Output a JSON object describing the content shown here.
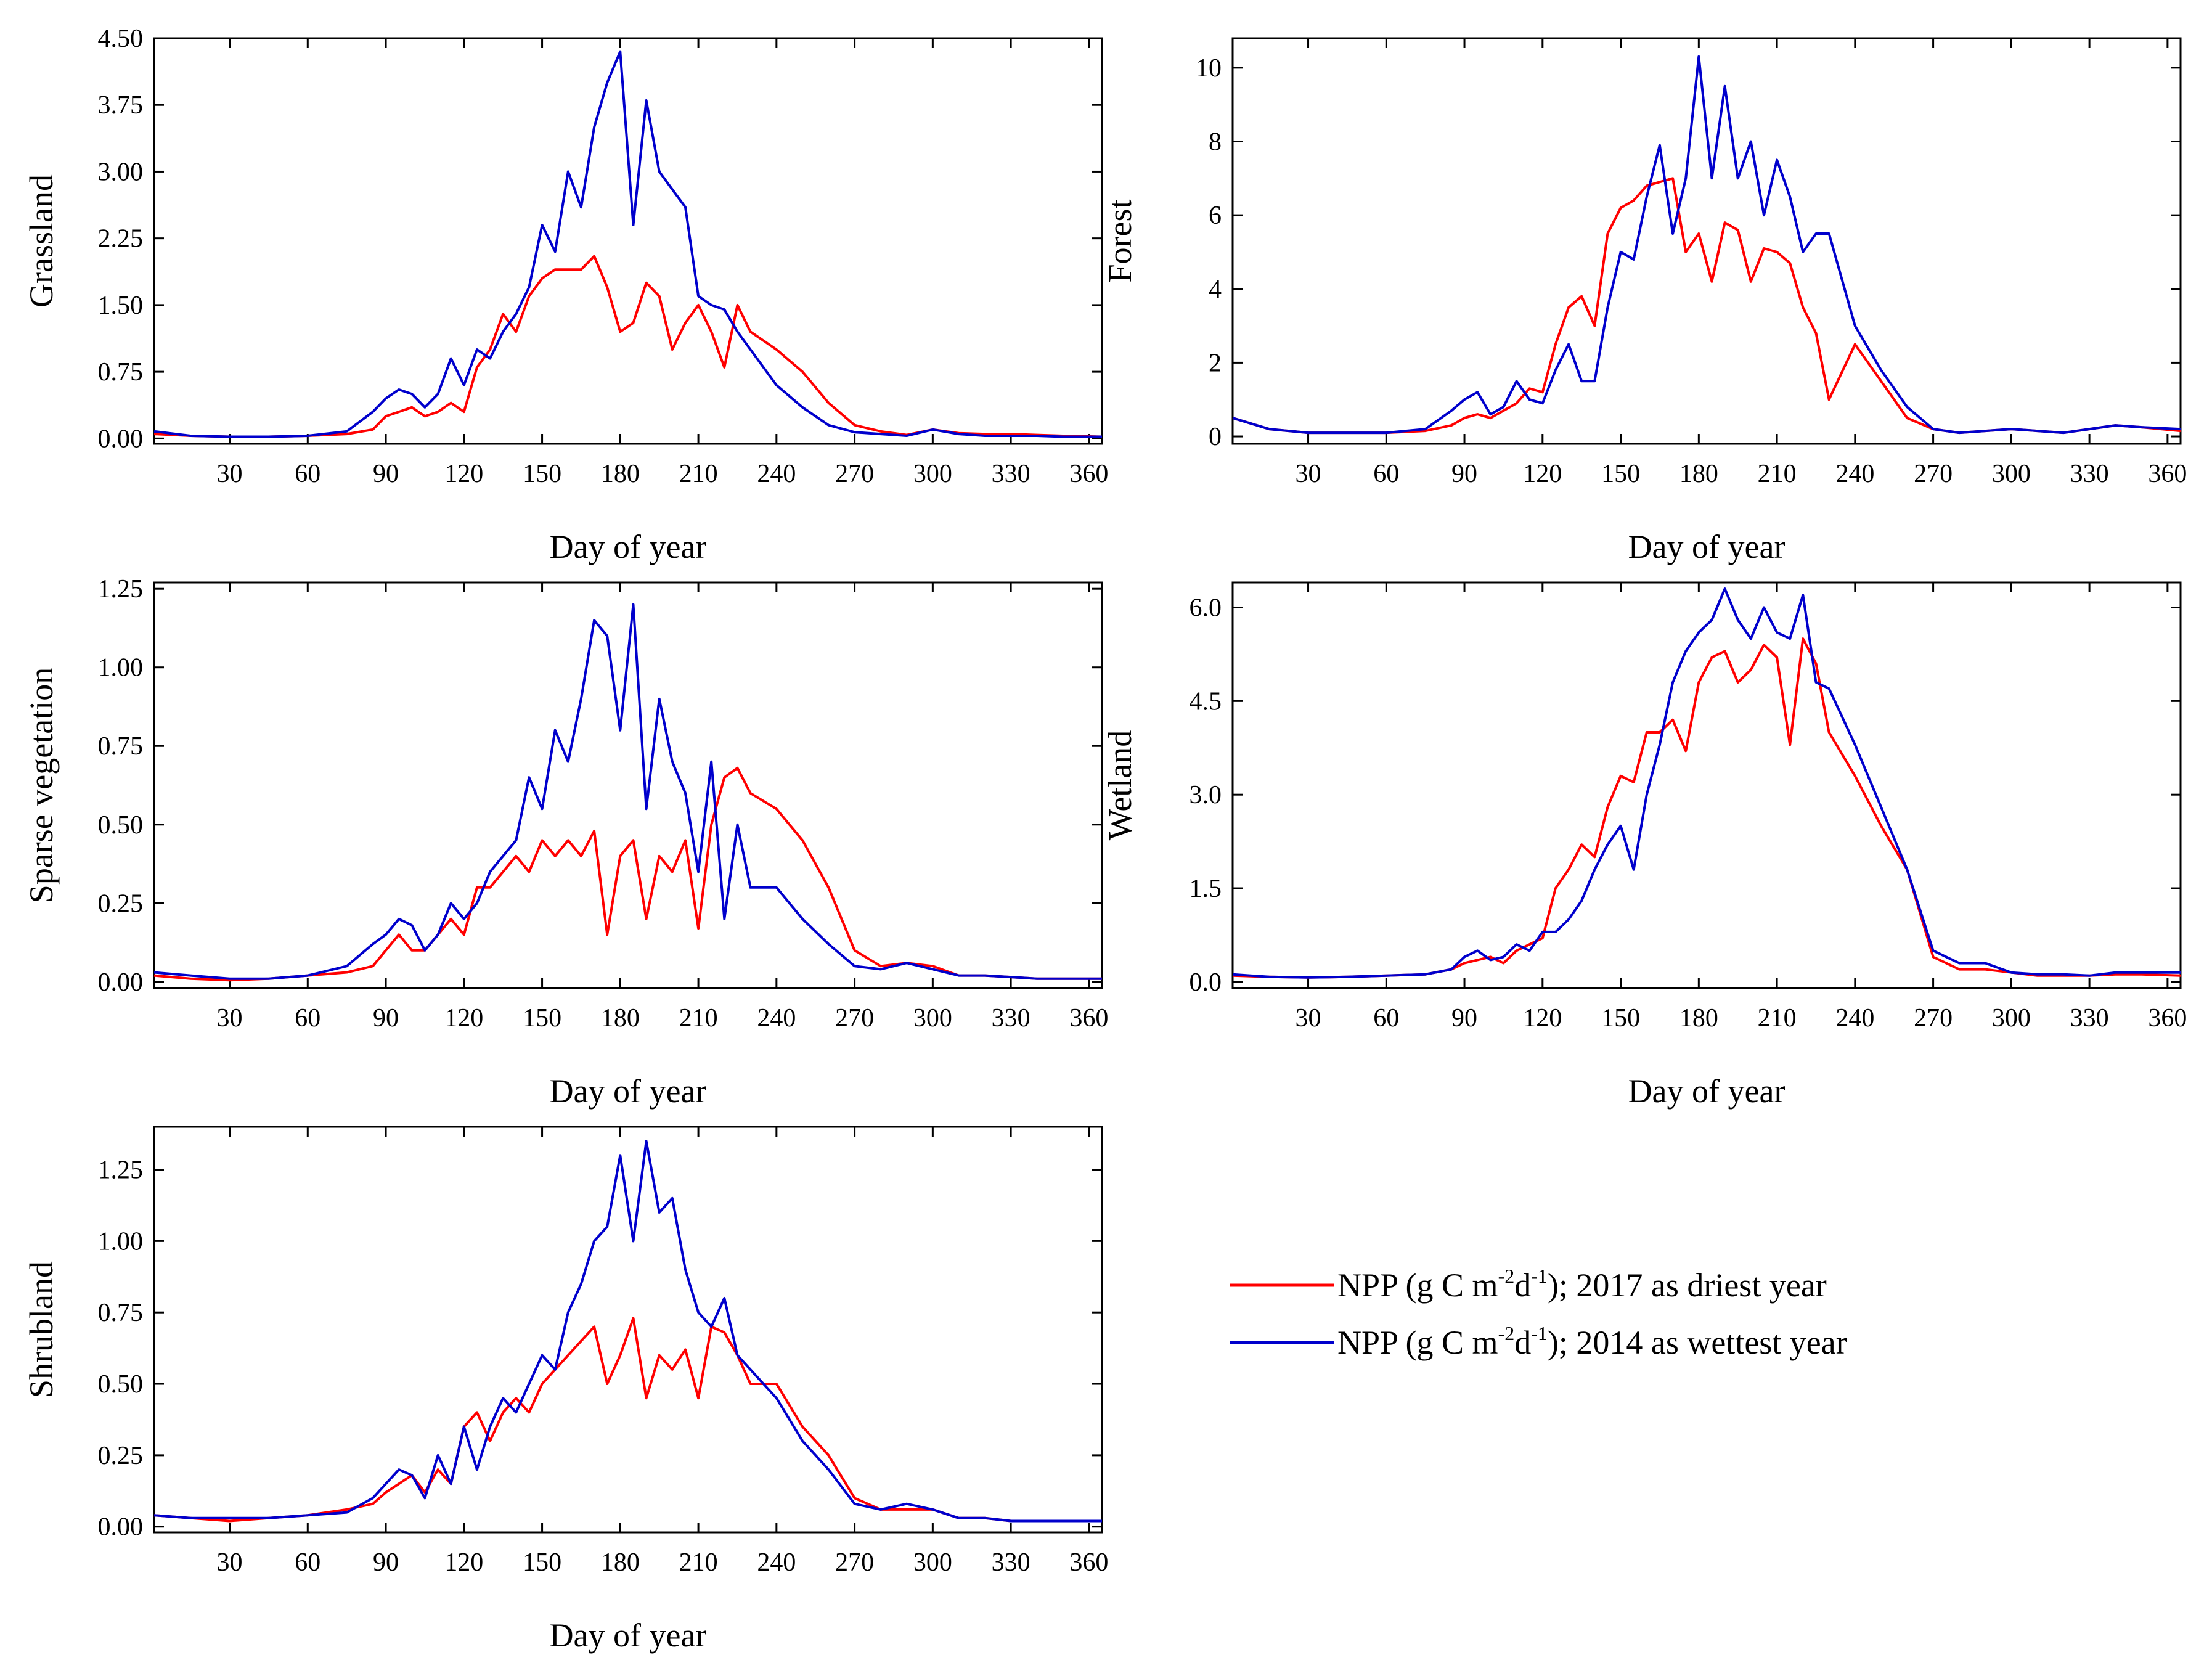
{
  "legend": {
    "items": [
      {
        "label_pre": "NPP (g C m",
        "sup1": "-2",
        "label_mid": "d",
        "sup2": "-1",
        "label_post": "); 2017 as driest year",
        "color": "#ff0000"
      },
      {
        "label_pre": "NPP (g C m",
        "sup1": "-2",
        "label_mid": "d",
        "sup2": "-1",
        "label_post": "); 2014 as wettest year",
        "color": "#0000cc"
      }
    ]
  },
  "chart_data": [
    {
      "type": "line",
      "ylabel": "Grassland",
      "xlabel": "Day of year",
      "xlim": [
        1,
        365
      ],
      "ylim": [
        -0.06,
        4.5
      ],
      "xticks": [
        30,
        60,
        90,
        120,
        150,
        180,
        210,
        240,
        270,
        300,
        330,
        360
      ],
      "yticks": [
        "0.00",
        "0.75",
        "1.50",
        "2.25",
        "3.00",
        "3.75",
        "4.50"
      ],
      "x": [
        1,
        15,
        30,
        45,
        60,
        75,
        85,
        90,
        95,
        100,
        105,
        110,
        115,
        120,
        125,
        130,
        135,
        140,
        145,
        150,
        155,
        160,
        165,
        170,
        175,
        180,
        185,
        190,
        195,
        200,
        205,
        210,
        215,
        220,
        225,
        230,
        240,
        250,
        260,
        270,
        280,
        290,
        300,
        310,
        320,
        330,
        340,
        350,
        365
      ],
      "series": [
        {
          "name": "NPP (g C m-2d-1); 2017 as driest year",
          "color": "#ff0000",
          "values": [
            0.05,
            0.03,
            0.02,
            0.02,
            0.03,
            0.05,
            0.1,
            0.25,
            0.3,
            0.35,
            0.25,
            0.3,
            0.4,
            0.3,
            0.8,
            1.0,
            1.4,
            1.2,
            1.6,
            1.8,
            1.9,
            1.9,
            1.9,
            2.05,
            1.7,
            1.2,
            1.3,
            1.75,
            1.6,
            1.0,
            1.3,
            1.5,
            1.2,
            0.8,
            1.5,
            1.2,
            1.0,
            0.75,
            0.4,
            0.15,
            0.08,
            0.04,
            0.1,
            0.06,
            0.05,
            0.05,
            0.04,
            0.03,
            0.02
          ]
        },
        {
          "name": "NPP (g C m-2d-1); 2014 as wettest year",
          "color": "#0000cc",
          "values": [
            0.08,
            0.03,
            0.02,
            0.02,
            0.03,
            0.08,
            0.3,
            0.45,
            0.55,
            0.5,
            0.35,
            0.5,
            0.9,
            0.6,
            1.0,
            0.9,
            1.2,
            1.4,
            1.7,
            2.4,
            2.1,
            3.0,
            2.6,
            3.5,
            4.0,
            4.35,
            2.4,
            3.8,
            3.0,
            2.8,
            2.6,
            1.6,
            1.5,
            1.45,
            1.2,
            1.0,
            0.6,
            0.35,
            0.15,
            0.07,
            0.05,
            0.03,
            0.1,
            0.05,
            0.03,
            0.03,
            0.03,
            0.02,
            0.02
          ]
        }
      ]
    },
    {
      "type": "line",
      "ylabel": "Forest",
      "xlabel": "Day of year",
      "xlim": [
        1,
        365
      ],
      "ylim": [
        -0.2,
        10.8
      ],
      "xticks": [
        30,
        60,
        90,
        120,
        150,
        180,
        210,
        240,
        270,
        300,
        330,
        360
      ],
      "yticks": [
        "0",
        "2",
        "4",
        "6",
        "8",
        "10"
      ],
      "x": [
        1,
        15,
        30,
        45,
        60,
        75,
        85,
        90,
        95,
        100,
        105,
        110,
        115,
        120,
        125,
        130,
        135,
        140,
        145,
        150,
        155,
        160,
        165,
        170,
        175,
        180,
        185,
        190,
        195,
        200,
        205,
        210,
        215,
        220,
        225,
        230,
        240,
        250,
        260,
        270,
        280,
        290,
        300,
        310,
        320,
        330,
        340,
        350,
        365
      ],
      "series": [
        {
          "name": "NPP (g C m-2d-1); 2017 as driest year",
          "color": "#ff0000",
          "values": [
            0.5,
            0.2,
            0.1,
            0.1,
            0.1,
            0.15,
            0.3,
            0.5,
            0.6,
            0.5,
            0.7,
            0.9,
            1.3,
            1.2,
            2.5,
            3.5,
            3.8,
            3.0,
            5.5,
            6.2,
            6.4,
            6.8,
            6.9,
            7.0,
            5.0,
            5.5,
            4.2,
            5.8,
            5.6,
            4.2,
            5.1,
            5.0,
            4.7,
            3.5,
            2.8,
            1.0,
            2.5,
            1.5,
            0.5,
            0.2,
            0.1,
            0.15,
            0.2,
            0.15,
            0.1,
            0.2,
            0.3,
            0.25,
            0.15
          ]
        },
        {
          "name": "NPP (g C m-2d-1); 2014 as wettest year",
          "color": "#0000cc",
          "values": [
            0.5,
            0.2,
            0.1,
            0.1,
            0.1,
            0.2,
            0.7,
            1.0,
            1.2,
            0.6,
            0.8,
            1.5,
            1.0,
            0.9,
            1.8,
            2.5,
            1.5,
            1.5,
            3.5,
            5.0,
            4.8,
            6.5,
            7.9,
            5.5,
            7.0,
            10.3,
            7.0,
            9.5,
            7.0,
            8.0,
            6.0,
            7.5,
            6.5,
            5.0,
            5.5,
            5.5,
            3.0,
            1.8,
            0.8,
            0.2,
            0.1,
            0.15,
            0.2,
            0.15,
            0.1,
            0.2,
            0.3,
            0.25,
            0.2
          ]
        }
      ]
    },
    {
      "type": "line",
      "ylabel": "Sparse vegetation",
      "xlabel": "Day of year",
      "xlim": [
        1,
        365
      ],
      "ylim": [
        -0.02,
        1.27
      ],
      "xticks": [
        30,
        60,
        90,
        120,
        150,
        180,
        210,
        240,
        270,
        300,
        330,
        360
      ],
      "yticks": [
        "0.00",
        "0.25",
        "0.50",
        "0.75",
        "1.00",
        "1.25"
      ],
      "x": [
        1,
        15,
        30,
        45,
        60,
        75,
        85,
        90,
        95,
        100,
        105,
        110,
        115,
        120,
        125,
        130,
        135,
        140,
        145,
        150,
        155,
        160,
        165,
        170,
        175,
        180,
        185,
        190,
        195,
        200,
        205,
        210,
        215,
        220,
        225,
        230,
        240,
        250,
        260,
        270,
        280,
        290,
        300,
        310,
        320,
        330,
        340,
        350,
        365
      ],
      "series": [
        {
          "name": "NPP (g C m-2d-1); 2017 as driest year",
          "color": "#ff0000",
          "values": [
            0.02,
            0.01,
            0.005,
            0.01,
            0.02,
            0.03,
            0.05,
            0.1,
            0.15,
            0.1,
            0.1,
            0.15,
            0.2,
            0.15,
            0.3,
            0.3,
            0.35,
            0.4,
            0.35,
            0.45,
            0.4,
            0.45,
            0.4,
            0.48,
            0.15,
            0.4,
            0.45,
            0.2,
            0.4,
            0.35,
            0.45,
            0.17,
            0.5,
            0.65,
            0.68,
            0.6,
            0.55,
            0.45,
            0.3,
            0.1,
            0.05,
            0.06,
            0.05,
            0.02,
            0.02,
            0.015,
            0.01,
            0.01,
            0.01
          ]
        },
        {
          "name": "NPP (g C m-2d-1); 2014 as wettest year",
          "color": "#0000cc",
          "values": [
            0.03,
            0.02,
            0.01,
            0.01,
            0.02,
            0.05,
            0.12,
            0.15,
            0.2,
            0.18,
            0.1,
            0.15,
            0.25,
            0.2,
            0.25,
            0.35,
            0.4,
            0.45,
            0.65,
            0.55,
            0.8,
            0.7,
            0.9,
            1.15,
            1.1,
            0.8,
            1.2,
            0.55,
            0.9,
            0.7,
            0.6,
            0.35,
            0.7,
            0.2,
            0.5,
            0.3,
            0.3,
            0.2,
            0.12,
            0.05,
            0.04,
            0.06,
            0.04,
            0.02,
            0.02,
            0.015,
            0.01,
            0.01,
            0.01
          ]
        }
      ]
    },
    {
      "type": "line",
      "ylabel": "Wetland",
      "xlabel": "Day of year",
      "xlim": [
        1,
        365
      ],
      "ylim": [
        -0.1,
        6.4
      ],
      "xticks": [
        30,
        60,
        90,
        120,
        150,
        180,
        210,
        240,
        270,
        300,
        330,
        360
      ],
      "yticks": [
        "0.0",
        "1.5",
        "3.0",
        "4.5",
        "6.0"
      ],
      "x": [
        1,
        15,
        30,
        45,
        60,
        75,
        85,
        90,
        95,
        100,
        105,
        110,
        115,
        120,
        125,
        130,
        135,
        140,
        145,
        150,
        155,
        160,
        165,
        170,
        175,
        180,
        185,
        190,
        195,
        200,
        205,
        210,
        215,
        220,
        225,
        230,
        240,
        250,
        260,
        270,
        280,
        290,
        300,
        310,
        320,
        330,
        340,
        350,
        365
      ],
      "series": [
        {
          "name": "NPP (g C m-2d-1); 2017 as driest year",
          "color": "#ff0000",
          "values": [
            0.1,
            0.08,
            0.07,
            0.08,
            0.1,
            0.12,
            0.2,
            0.3,
            0.35,
            0.4,
            0.3,
            0.5,
            0.6,
            0.7,
            1.5,
            1.8,
            2.2,
            2.0,
            2.8,
            3.3,
            3.2,
            4.0,
            4.0,
            4.2,
            3.7,
            4.8,
            5.2,
            5.3,
            4.8,
            5.0,
            5.4,
            5.2,
            3.8,
            5.5,
            5.1,
            4.0,
            3.3,
            2.5,
            1.8,
            0.4,
            0.2,
            0.2,
            0.15,
            0.1,
            0.1,
            0.1,
            0.12,
            0.12,
            0.1
          ]
        },
        {
          "name": "NPP (g C m-2d-1); 2014 as wettest year",
          "color": "#0000cc",
          "values": [
            0.12,
            0.08,
            0.07,
            0.08,
            0.1,
            0.12,
            0.2,
            0.4,
            0.5,
            0.35,
            0.4,
            0.6,
            0.5,
            0.8,
            0.8,
            1.0,
            1.3,
            1.8,
            2.2,
            2.5,
            1.8,
            3.0,
            3.8,
            4.8,
            5.3,
            5.6,
            5.8,
            6.3,
            5.8,
            5.5,
            6.0,
            5.6,
            5.5,
            6.2,
            4.8,
            4.7,
            3.8,
            2.8,
            1.8,
            0.5,
            0.3,
            0.3,
            0.15,
            0.12,
            0.12,
            0.1,
            0.15,
            0.15,
            0.15
          ]
        }
      ]
    },
    {
      "type": "line",
      "ylabel": "Shrubland",
      "xlabel": "Day of year",
      "xlim": [
        1,
        365
      ],
      "ylim": [
        -0.02,
        1.4
      ],
      "xticks": [
        30,
        60,
        90,
        120,
        150,
        180,
        210,
        240,
        270,
        300,
        330,
        360
      ],
      "yticks": [
        "0.00",
        "0.25",
        "0.50",
        "0.75",
        "1.00",
        "1.25"
      ],
      "x": [
        1,
        15,
        30,
        45,
        60,
        75,
        85,
        90,
        95,
        100,
        105,
        110,
        115,
        120,
        125,
        130,
        135,
        140,
        145,
        150,
        155,
        160,
        165,
        170,
        175,
        180,
        185,
        190,
        195,
        200,
        205,
        210,
        215,
        220,
        225,
        230,
        240,
        250,
        260,
        270,
        280,
        290,
        300,
        310,
        320,
        330,
        340,
        350,
        365
      ],
      "series": [
        {
          "name": "NPP (g C m-2d-1); 2017 as driest year",
          "color": "#ff0000",
          "values": [
            0.04,
            0.03,
            0.02,
            0.03,
            0.04,
            0.06,
            0.08,
            0.12,
            0.15,
            0.18,
            0.12,
            0.2,
            0.15,
            0.35,
            0.4,
            0.3,
            0.4,
            0.45,
            0.4,
            0.5,
            0.55,
            0.6,
            0.65,
            0.7,
            0.5,
            0.6,
            0.73,
            0.45,
            0.6,
            0.55,
            0.62,
            0.45,
            0.7,
            0.68,
            0.6,
            0.5,
            0.5,
            0.35,
            0.25,
            0.1,
            0.06,
            0.06,
            0.06,
            0.03,
            0.03,
            0.02,
            0.02,
            0.02,
            0.02
          ]
        },
        {
          "name": "NPP (g C m-2d-1); 2014 as wettest year",
          "color": "#0000cc",
          "values": [
            0.04,
            0.03,
            0.03,
            0.03,
            0.04,
            0.05,
            0.1,
            0.15,
            0.2,
            0.18,
            0.1,
            0.25,
            0.15,
            0.35,
            0.2,
            0.35,
            0.45,
            0.4,
            0.5,
            0.6,
            0.55,
            0.75,
            0.85,
            1.0,
            1.05,
            1.3,
            1.0,
            1.35,
            1.1,
            1.15,
            0.9,
            0.75,
            0.7,
            0.8,
            0.6,
            0.55,
            0.45,
            0.3,
            0.2,
            0.08,
            0.06,
            0.08,
            0.06,
            0.03,
            0.03,
            0.02,
            0.02,
            0.02,
            0.02
          ]
        }
      ]
    }
  ]
}
